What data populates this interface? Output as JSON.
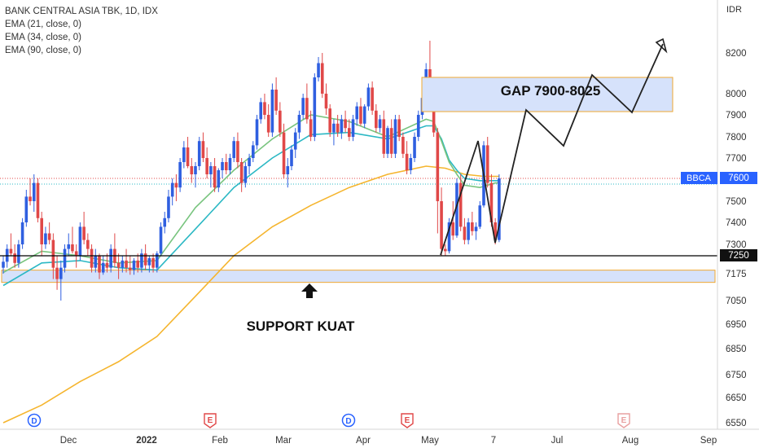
{
  "legend": {
    "symbol_line": "BANK CENTRAL ASIA TBK, 1D, IDX",
    "ema_lines": [
      "EMA (21, close, 0)",
      "EMA (34, close, 0)",
      "EMA (90, close, 0)"
    ]
  },
  "axis": {
    "currency": "IDR",
    "y_ticks": [
      "8200",
      "8000",
      "7900",
      "7800",
      "7700",
      "7600",
      "7500",
      "7400",
      "7300",
      "7175",
      "7050",
      "6950",
      "6850",
      "6750",
      "6650",
      "6550"
    ],
    "x_ticks": [
      "Dec",
      "2022",
      "Feb",
      "Mar",
      "Apr",
      "May",
      "7",
      "Jul",
      "Aug",
      "Sep"
    ],
    "price_badge_symbol": "BBCA",
    "price_badge_value": "7600",
    "level_badge_value": "7250"
  },
  "annotations": {
    "gap_label": "GAP 7900-8025",
    "support_label": "SUPPORT KUAT"
  },
  "event_markers": [
    {
      "letter": "D",
      "kind": "dividend"
    },
    {
      "letter": "E",
      "kind": "earnings"
    },
    {
      "letter": "D",
      "kind": "dividend"
    },
    {
      "letter": "E",
      "kind": "earnings"
    },
    {
      "letter": "E",
      "kind": "earnings-future"
    }
  ],
  "colors": {
    "up": "#2f5fe0",
    "down": "#e04848",
    "ema21": "#78c47e",
    "ema34": "#2bb8c4",
    "ema90": "#f5b52e",
    "zone_fill": "#d6e2fb",
    "zone_border": "#f0a830",
    "projection": "#222222",
    "badge_blue": "#2962ff",
    "badge_black": "#111111"
  },
  "chart_data": {
    "type": "candlestick",
    "title": "BANK CENTRAL ASIA TBK, 1D, IDX",
    "symbol": "BBCA",
    "y_unit": "IDR",
    "last_close": 7600,
    "level_line": 7250,
    "candles_ohlc": [
      [
        7200,
        7250,
        7175,
        7225
      ],
      [
        7225,
        7300,
        7200,
        7280
      ],
      [
        7280,
        7350,
        7250,
        7260
      ],
      [
        7260,
        7300,
        7200,
        7220
      ],
      [
        7220,
        7320,
        7200,
        7300
      ],
      [
        7300,
        7420,
        7280,
        7400
      ],
      [
        7400,
        7550,
        7380,
        7520
      ],
      [
        7520,
        7600,
        7480,
        7500
      ],
      [
        7500,
        7620,
        7450,
        7580
      ],
      [
        7580,
        7600,
        7400,
        7420
      ],
      [
        7420,
        7450,
        7250,
        7300
      ],
      [
        7300,
        7380,
        7280,
        7350
      ],
      [
        7350,
        7400,
        7300,
        7320
      ],
      [
        7320,
        7350,
        7150,
        7200
      ],
      [
        7200,
        7250,
        7100,
        7150
      ],
      [
        7150,
        7230,
        7050,
        7200
      ],
      [
        7200,
        7300,
        7180,
        7280
      ],
      [
        7280,
        7350,
        7250,
        7300
      ],
      [
        7300,
        7380,
        7260,
        7270
      ],
      [
        7270,
        7300,
        7200,
        7250
      ],
      [
        7250,
        7400,
        7230,
        7380
      ],
      [
        7380,
        7450,
        7300,
        7320
      ],
      [
        7320,
        7350,
        7250,
        7280
      ],
      [
        7280,
        7300,
        7180,
        7200
      ],
      [
        7200,
        7280,
        7180,
        7250
      ],
      [
        7250,
        7260,
        7150,
        7180
      ],
      [
        7180,
        7250,
        7170,
        7220
      ],
      [
        7220,
        7260,
        7180,
        7200
      ],
      [
        7200,
        7300,
        7180,
        7280
      ],
      [
        7280,
        7350,
        7200,
        7220
      ],
      [
        7220,
        7260,
        7150,
        7200
      ],
      [
        7200,
        7250,
        7180,
        7230
      ],
      [
        7230,
        7280,
        7180,
        7200
      ],
      [
        7200,
        7250,
        7170,
        7190
      ],
      [
        7190,
        7240,
        7170,
        7230
      ],
      [
        7230,
        7260,
        7180,
        7200
      ],
      [
        7200,
        7280,
        7180,
        7260
      ],
      [
        7260,
        7300,
        7190,
        7210
      ],
      [
        7210,
        7250,
        7180,
        7240
      ],
      [
        7240,
        7260,
        7180,
        7200
      ],
      [
        7200,
        7270,
        7180,
        7260
      ],
      [
        7260,
        7400,
        7250,
        7380
      ],
      [
        7380,
        7450,
        7350,
        7420
      ],
      [
        7420,
        7550,
        7400,
        7520
      ],
      [
        7520,
        7600,
        7480,
        7580
      ],
      [
        7580,
        7620,
        7500,
        7560
      ],
      [
        7560,
        7700,
        7540,
        7680
      ],
      [
        7680,
        7780,
        7650,
        7750
      ],
      [
        7750,
        7800,
        7650,
        7660
      ],
      [
        7660,
        7700,
        7580,
        7620
      ],
      [
        7620,
        7680,
        7560,
        7660
      ],
      [
        7660,
        7800,
        7640,
        7780
      ],
      [
        7780,
        7820,
        7680,
        7700
      ],
      [
        7700,
        7750,
        7600,
        7620
      ],
      [
        7620,
        7680,
        7560,
        7660
      ],
      [
        7660,
        7700,
        7540,
        7560
      ],
      [
        7560,
        7650,
        7540,
        7640
      ],
      [
        7640,
        7700,
        7600,
        7680
      ],
      [
        7680,
        7720,
        7620,
        7640
      ],
      [
        7640,
        7720,
        7620,
        7700
      ],
      [
        7700,
        7800,
        7680,
        7780
      ],
      [
        7780,
        7820,
        7650,
        7680
      ],
      [
        7680,
        7700,
        7540,
        7580
      ],
      [
        7580,
        7680,
        7560,
        7660
      ],
      [
        7660,
        7720,
        7620,
        7700
      ],
      [
        7700,
        7780,
        7680,
        7760
      ],
      [
        7760,
        7900,
        7740,
        7880
      ],
      [
        7880,
        7980,
        7860,
        7960
      ],
      [
        7960,
        8000,
        7880,
        7900
      ],
      [
        7900,
        7950,
        7800,
        7820
      ],
      [
        7820,
        8050,
        7800,
        8020
      ],
      [
        8020,
        8080,
        7900,
        7920
      ],
      [
        7920,
        7960,
        7800,
        7820
      ],
      [
        7820,
        7860,
        7600,
        7620
      ],
      [
        7620,
        7700,
        7560,
        7660
      ],
      [
        7660,
        7760,
        7640,
        7740
      ],
      [
        7740,
        7840,
        7700,
        7820
      ],
      [
        7820,
        7920,
        7790,
        7900
      ],
      [
        7900,
        8000,
        7880,
        7980
      ],
      [
        7980,
        8050,
        7860,
        7880
      ],
      [
        7880,
        7920,
        7780,
        7800
      ],
      [
        7800,
        8100,
        7780,
        8080
      ],
      [
        8080,
        8180,
        8060,
        8150
      ],
      [
        8150,
        8200,
        7980,
        8000
      ],
      [
        8000,
        8050,
        7900,
        7930
      ],
      [
        7930,
        7950,
        7800,
        7820
      ],
      [
        7820,
        7880,
        7760,
        7860
      ],
      [
        7860,
        7900,
        7800,
        7820
      ],
      [
        7820,
        7900,
        7790,
        7880
      ],
      [
        7880,
        7920,
        7820,
        7840
      ],
      [
        7840,
        7880,
        7780,
        7800
      ],
      [
        7800,
        7900,
        7780,
        7880
      ],
      [
        7880,
        7960,
        7850,
        7940
      ],
      [
        7940,
        7980,
        7850,
        7860
      ],
      [
        7860,
        7950,
        7840,
        7940
      ],
      [
        7940,
        8050,
        7920,
        8030
      ],
      [
        8030,
        8060,
        7900,
        7920
      ],
      [
        7920,
        7950,
        7820,
        7840
      ],
      [
        7840,
        7900,
        7820,
        7880
      ],
      [
        7880,
        7920,
        7700,
        7720
      ],
      [
        7720,
        7850,
        7700,
        7840
      ],
      [
        7840,
        7880,
        7700,
        7720
      ],
      [
        7720,
        7900,
        7700,
        7880
      ],
      [
        7880,
        7900,
        7780,
        7800
      ],
      [
        7800,
        7820,
        7700,
        7720
      ],
      [
        7720,
        7780,
        7620,
        7640
      ],
      [
        7640,
        7720,
        7620,
        7700
      ],
      [
        7700,
        7820,
        7680,
        7800
      ],
      [
        7800,
        7920,
        7780,
        7900
      ],
      [
        7900,
        8000,
        7880,
        7980
      ],
      [
        7980,
        8150,
        7960,
        8120
      ],
      [
        8120,
        8260,
        8000,
        8040
      ],
      [
        8040,
        8080,
        7800,
        7820
      ],
      [
        7820,
        7840,
        7350,
        7500
      ],
      [
        7500,
        7560,
        7250,
        7280
      ],
      [
        7280,
        7300,
        7250,
        7270
      ],
      [
        7270,
        7420,
        7260,
        7400
      ],
      [
        7400,
        7500,
        7320,
        7340
      ],
      [
        7340,
        7600,
        7330,
        7580
      ],
      [
        7580,
        7620,
        7360,
        7380
      ],
      [
        7380,
        7420,
        7300,
        7320
      ],
      [
        7320,
        7420,
        7300,
        7400
      ],
      [
        7400,
        7450,
        7340,
        7360
      ],
      [
        7360,
        7400,
        7320,
        7380
      ],
      [
        7380,
        7500,
        7370,
        7480
      ],
      [
        7480,
        7780,
        7470,
        7760
      ],
      [
        7760,
        7800,
        7560,
        7580
      ],
      [
        7580,
        7620,
        7380,
        7400
      ],
      [
        7400,
        7420,
        7300,
        7320
      ],
      [
        7320,
        7620,
        7310,
        7600
      ]
    ],
    "ema21": [
      [
        0,
        7180
      ],
      [
        10,
        7270
      ],
      [
        20,
        7250
      ],
      [
        30,
        7220
      ],
      [
        40,
        7230
      ],
      [
        50,
        7470
      ],
      [
        60,
        7640
      ],
      [
        70,
        7790
      ],
      [
        80,
        7900
      ],
      [
        90,
        7870
      ],
      [
        100,
        7800
      ],
      [
        110,
        7880
      ],
      [
        112,
        7870
      ],
      [
        114,
        7780
      ],
      [
        116,
        7680
      ],
      [
        118,
        7620
      ],
      [
        120,
        7570
      ],
      [
        124,
        7560
      ],
      [
        126,
        7570
      ],
      [
        128,
        7580
      ],
      [
        129,
        7580
      ]
    ],
    "ema34": [
      [
        0,
        7120
      ],
      [
        10,
        7220
      ],
      [
        20,
        7230
      ],
      [
        30,
        7200
      ],
      [
        40,
        7190
      ],
      [
        50,
        7370
      ],
      [
        60,
        7560
      ],
      [
        70,
        7700
      ],
      [
        80,
        7810
      ],
      [
        90,
        7820
      ],
      [
        100,
        7790
      ],
      [
        110,
        7850
      ],
      [
        112,
        7850
      ],
      [
        114,
        7790
      ],
      [
        116,
        7690
      ],
      [
        118,
        7640
      ],
      [
        120,
        7600
      ],
      [
        124,
        7590
      ],
      [
        126,
        7590
      ],
      [
        128,
        7590
      ],
      [
        129,
        7590
      ]
    ],
    "ema90": [
      [
        0,
        6450
      ],
      [
        10,
        6620
      ],
      [
        20,
        6720
      ],
      [
        30,
        6800
      ],
      [
        40,
        6900
      ],
      [
        50,
        7070
      ],
      [
        60,
        7250
      ],
      [
        70,
        7380
      ],
      [
        80,
        7480
      ],
      [
        90,
        7560
      ],
      [
        100,
        7620
      ],
      [
        110,
        7660
      ],
      [
        115,
        7650
      ],
      [
        120,
        7620
      ],
      [
        125,
        7610
      ],
      [
        129,
        7610
      ]
    ],
    "zones": [
      {
        "label": "GAP 7900-8025",
        "from": 7900,
        "to": 8025,
        "type": "gap"
      },
      {
        "label": "SUPPORT KUAT",
        "from": 7150,
        "to": 7200,
        "type": "support"
      }
    ],
    "projection_path": [
      [
        108,
        7250
      ],
      [
        116,
        7750
      ],
      [
        118,
        7550
      ],
      [
        121,
        7300
      ],
      [
        125,
        7900
      ],
      [
        131,
        7750
      ],
      [
        135,
        8050
      ],
      [
        139,
        7900
      ],
      [
        143,
        8250
      ]
    ]
  }
}
